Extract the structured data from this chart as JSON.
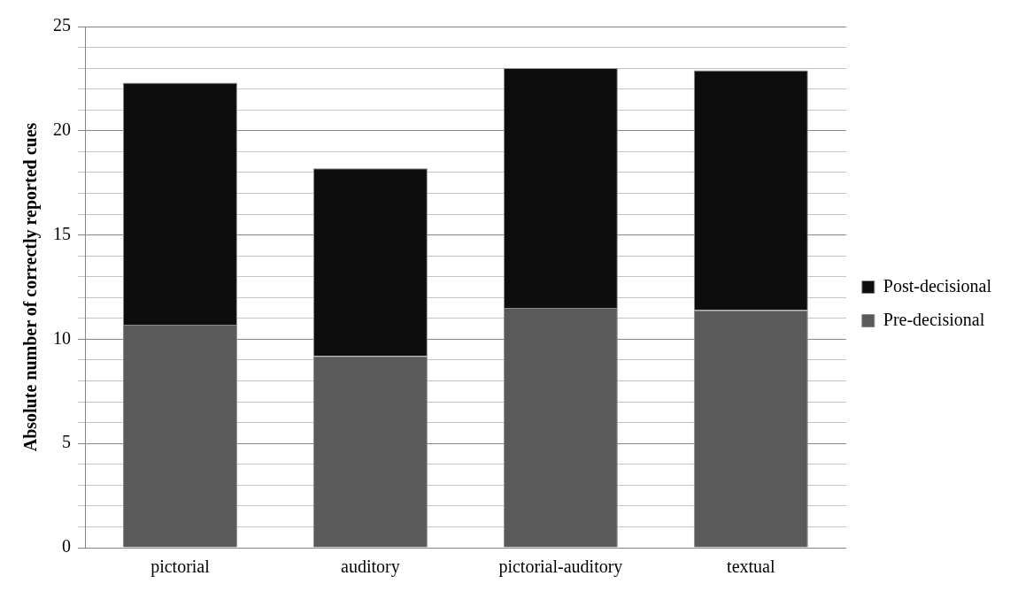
{
  "chart_data": {
    "type": "bar",
    "stacked": true,
    "ylabel": "Absolute number of correctly reported cues",
    "categories": [
      "pictorial",
      "auditory",
      "pictorial-auditory",
      "textual"
    ],
    "series": [
      {
        "name": "Pre-decisional",
        "color": "#5a5a5a",
        "values": [
          10.7,
          9.2,
          11.5,
          11.4
        ]
      },
      {
        "name": "Post-decisional",
        "color": "#0d0d0d",
        "values": [
          11.6,
          9.0,
          11.5,
          11.5
        ]
      }
    ],
    "ylim": [
      0,
      25
    ],
    "yticks": [
      0,
      {
        "value": 1,
        "label": null
      },
      {
        "value": 2,
        "label": null
      },
      {
        "value": 3,
        "label": null
      },
      {
        "value": 4,
        "label": null
      },
      5,
      {
        "value": 6,
        "label": null
      },
      {
        "value": 7,
        "label": null
      },
      {
        "value": 8,
        "label": null
      },
      {
        "value": 9,
        "label": null
      },
      10,
      {
        "value": 11,
        "label": null
      },
      {
        "value": 12,
        "label": null
      },
      {
        "value": 13,
        "label": null
      },
      {
        "value": 14,
        "label": null
      },
      15,
      {
        "value": 16,
        "label": null
      },
      {
        "value": 17,
        "label": null
      },
      {
        "value": 18,
        "label": null
      },
      {
        "value": 19,
        "label": null
      },
      20,
      {
        "value": 21,
        "label": null
      },
      {
        "value": 22,
        "label": null
      },
      {
        "value": 23,
        "label": null
      },
      {
        "value": 24,
        "label": null
      },
      25
    ],
    "grid": "y",
    "legend": "right"
  }
}
